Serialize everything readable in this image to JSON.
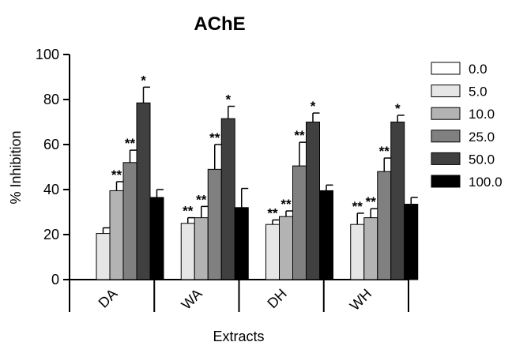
{
  "chart_data": {
    "type": "bar",
    "title": "AChE",
    "xlabel": "Extracts",
    "ylabel": "% Inhibition",
    "ylim": [
      0,
      100
    ],
    "yticks": [
      "0",
      "20",
      "40",
      "60",
      "80",
      "100"
    ],
    "ytick_values": [
      0,
      20,
      40,
      60,
      80,
      100
    ],
    "categories": [
      "DA",
      "WA",
      "DH",
      "WH"
    ],
    "legend_position": "right",
    "grid": false,
    "series": [
      {
        "name": "0.0",
        "color": "#ffffff",
        "values": [
          null,
          null,
          null,
          null
        ],
        "errors": [
          null,
          null,
          null,
          null
        ],
        "marks": [
          "",
          "",
          "",
          ""
        ]
      },
      {
        "name": "5.0",
        "color": "#e6e6e6",
        "values": [
          20.5,
          25,
          24.5,
          24.5
        ],
        "errors": [
          2.5,
          2.5,
          2,
          5
        ],
        "marks": [
          "",
          "**",
          "**",
          "**"
        ]
      },
      {
        "name": "10.0",
        "color": "#b3b3b3",
        "values": [
          39.5,
          27.5,
          28,
          27.5
        ],
        "errors": [
          4,
          5,
          2.5,
          4
        ],
        "marks": [
          "**",
          "**",
          "**",
          "**"
        ]
      },
      {
        "name": "25.0",
        "color": "#808080",
        "values": [
          52,
          49,
          50.5,
          48
        ],
        "errors": [
          5.5,
          11,
          10.5,
          6
        ],
        "marks": [
          "**",
          "**",
          "**",
          "**"
        ]
      },
      {
        "name": "50.0",
        "color": "#404040",
        "values": [
          78.5,
          71.5,
          70,
          70
        ],
        "errors": [
          7,
          5.5,
          4,
          3
        ],
        "marks": [
          "*",
          "*",
          "*",
          "*"
        ]
      },
      {
        "name": "100.0",
        "color": "#000000",
        "values": [
          36.5,
          32,
          39.5,
          33.5
        ],
        "errors": [
          3.5,
          8.5,
          2.5,
          3
        ],
        "marks": [
          "",
          "",
          "",
          ""
        ]
      }
    ]
  }
}
